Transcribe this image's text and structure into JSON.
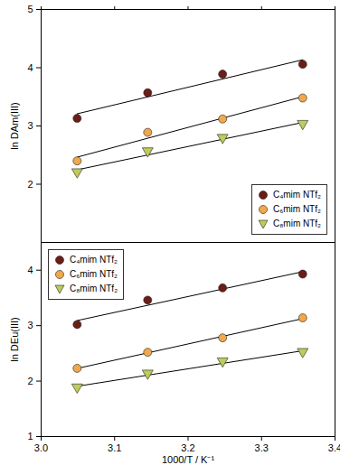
{
  "chart_data": [
    {
      "type": "scatter",
      "ylabel": "ln DAm(III)",
      "x": [
        3.049,
        3.145,
        3.247,
        3.356
      ],
      "series": [
        {
          "name": "C₄mim NTf₂",
          "color": "#6b1d16",
          "marker": "circle",
          "values": [
            3.13,
            3.57,
            3.89,
            4.06
          ]
        },
        {
          "name": "C₆mim NTf₂",
          "color": "#f0a84a",
          "marker": "circle",
          "values": [
            2.4,
            2.89,
            3.12,
            3.48
          ]
        },
        {
          "name": "C₈mim NTf₂",
          "color": "#bfcb5a",
          "marker": "triangle-down",
          "values": [
            2.2,
            2.56,
            2.79,
            3.03
          ]
        }
      ],
      "xlim": [
        3.0,
        3.4
      ],
      "xticks": [
        {
          "value": 3.0,
          "label": "3.0"
        },
        3.1,
        3.2,
        3.3,
        3.4
      ],
      "ylim": [
        1,
        5
      ],
      "yticks": [
        2,
        3,
        4,
        5
      ],
      "legend": "bottom-right",
      "tick_labels": "y"
    },
    {
      "type": "scatter",
      "xlabel": "1000/T / K⁻¹",
      "ylabel": "ln DEu(III)",
      "x": [
        3.049,
        3.145,
        3.247,
        3.356
      ],
      "series": [
        {
          "name": "C₄mim NTf₂",
          "color": "#6b1d16",
          "marker": "circle",
          "values": [
            3.02,
            3.46,
            3.68,
            3.93
          ]
        },
        {
          "name": "C₆mim NTf₂",
          "color": "#f0a84a",
          "marker": "circle",
          "values": [
            2.23,
            2.52,
            2.78,
            3.14
          ]
        },
        {
          "name": "C₈mim NTf₂",
          "color": "#bfcb5a",
          "marker": "triangle-down",
          "values": [
            1.88,
            2.13,
            2.35,
            2.52
          ]
        }
      ],
      "xlim": [
        3.0,
        3.4
      ],
      "xticks": [
        {
          "value": 3.0,
          "label": "3.0"
        },
        3.1,
        3.2,
        3.3,
        3.4
      ],
      "ylim": [
        1,
        4.5
      ],
      "yticks": [
        1,
        2,
        3,
        4
      ],
      "legend": "top-left"
    }
  ]
}
